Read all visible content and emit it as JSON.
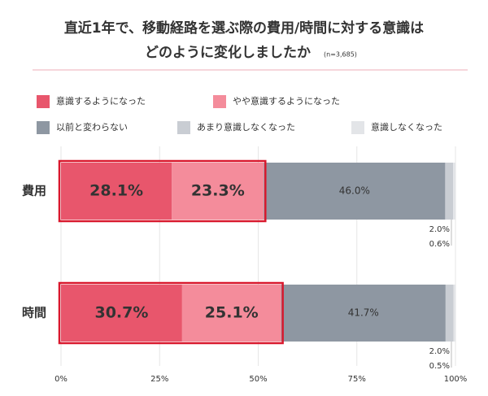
{
  "chart_data": {
    "type": "stacked-bar-horizontal",
    "title": [
      "直近1年で、移動経路を選ぶ際の費用/時間に対する意識は",
      "どのように変化しましたか"
    ],
    "subtitle": "(n=3,685)",
    "categories": [
      "費用",
      "時間"
    ],
    "series": [
      {
        "name": "意識するようになった",
        "color": "#e8566c",
        "values": [
          28.1,
          30.7
        ],
        "value_labels": [
          "28.1%",
          "30.7%"
        ]
      },
      {
        "name": "やや意識するようになった",
        "color": "#f48c9b",
        "values": [
          23.3,
          25.1
        ],
        "value_labels": [
          "23.3%",
          "25.1%"
        ]
      },
      {
        "name": "以前と変わらない",
        "color": "#8e97a2",
        "values": [
          46.0,
          41.7
        ],
        "value_labels": [
          "46.0%",
          "41.7%"
        ]
      },
      {
        "name": "あまり意識しなくなった",
        "color": "#c9cdd3",
        "values": [
          2.0,
          2.0
        ],
        "value_labels": [
          "2.0%",
          "2.0%"
        ]
      },
      {
        "name": "意識しなくなった",
        "color": "#e3e5e8",
        "values": [
          0.6,
          0.5
        ],
        "value_labels": [
          "0.6%",
          "0.5%"
        ]
      }
    ],
    "xlim": [
      0,
      100
    ],
    "xticks": [
      {
        "value": 0,
        "label": "0%"
      },
      {
        "value": 25,
        "label": "25%"
      },
      {
        "value": 50,
        "label": "50%"
      },
      {
        "value": 75,
        "label": "75%"
      },
      {
        "value": 100,
        "label": "100%"
      }
    ],
    "grid": true
  }
}
